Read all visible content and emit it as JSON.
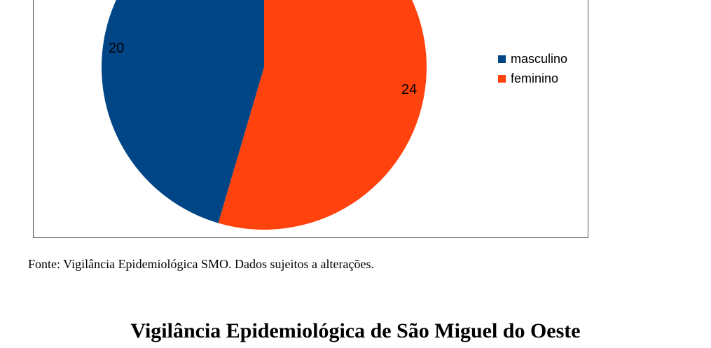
{
  "chart_data": {
    "type": "pie",
    "categories": [
      "masculino",
      "feminino"
    ],
    "values": [
      20,
      24
    ],
    "colors": [
      "#004586",
      "#ff420e"
    ],
    "data_labels": [
      "20",
      "24"
    ],
    "legend_position": "right"
  },
  "caption": "Fonte: Vigilância Epidemiológica SMO. Dados sujeitos a alterações.",
  "heading": "Vigilância Epidemiológica de São Miguel do Oeste"
}
